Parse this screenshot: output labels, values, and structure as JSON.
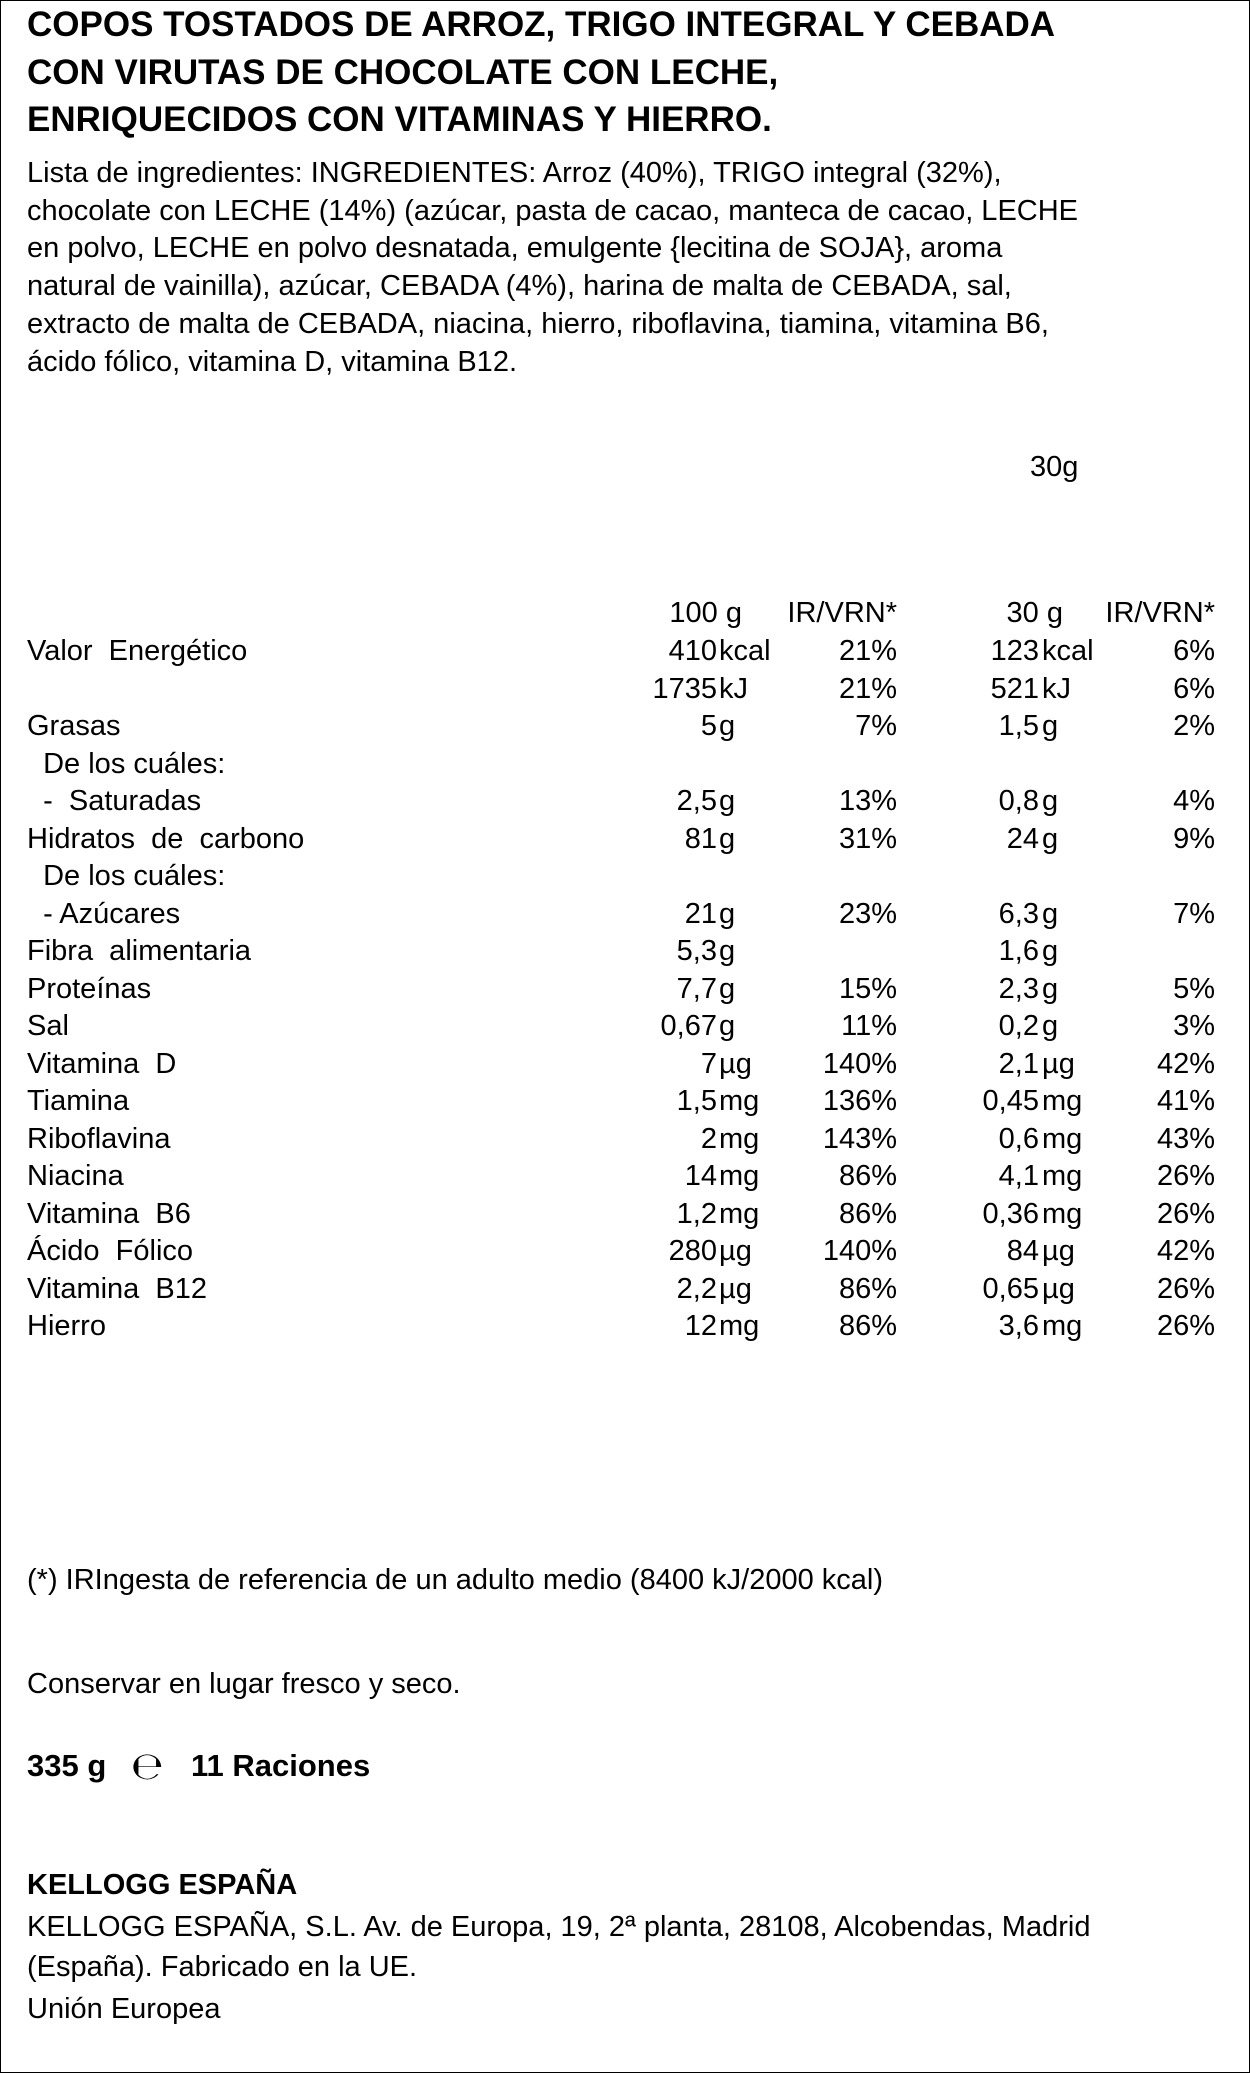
{
  "title": [
    "COPOS TOSTADOS DE ARROZ, TRIGO INTEGRAL Y CEBADA",
    "CON VIRUTAS DE CHOCOLATE CON LECHE,",
    "ENRIQUECIDOS CON VITAMINAS Y HIERRO."
  ],
  "ingredients": [
    "Lista de ingredientes: INGREDIENTES: Arroz (40%), TRIGO integral (32%),",
    "chocolate con LECHE (14%) (azúcar, pasta de cacao, manteca de cacao, LECHE",
    "en polvo, LECHE en polvo desnatada, emulgente {lecitina de SOJA}, aroma",
    "natural de vainilla), azúcar, CEBADA (4%), harina de malta de CEBADA, sal,",
    "extracto de malta de CEBADA, niacina, hierro, riboflavina, tiamina, vitamina B6,",
    "ácido fólico, vitamina D, vitamina B12."
  ],
  "serving": "30g",
  "table": {
    "header": [
      "100 g",
      "IR/VRN*",
      "30 g",
      "IR/VRN*"
    ],
    "rows": [
      {
        "label": "Valor  Energético",
        "v100": [
          "410",
          "kcal"
        ],
        "ir100": "21%",
        "v30": [
          "123",
          "kcal"
        ],
        "ir30": "6%"
      },
      {
        "label": null,
        "v100": [
          "1735",
          "kJ"
        ],
        "ir100": "21%",
        "v30": [
          "521",
          "kJ"
        ],
        "ir30": "6%"
      },
      {
        "label": "Grasas",
        "v100": [
          "5",
          "g"
        ],
        "ir100": "7%",
        "v30": [
          "1,5",
          "g"
        ],
        "ir30": "2%"
      },
      {
        "label": "  De los cuáles:",
        "v100": null,
        "ir100": null,
        "v30": null,
        "ir30": null
      },
      {
        "label": "  -  Saturadas",
        "v100": [
          "2,5",
          "g"
        ],
        "ir100": "13%",
        "v30": [
          "0,8",
          "g"
        ],
        "ir30": "4%"
      },
      {
        "label": "Hidratos  de  carbono",
        "v100": [
          "81",
          "g"
        ],
        "ir100": "31%",
        "v30": [
          "24",
          "g"
        ],
        "ir30": "9%"
      },
      {
        "label": "  De los cuáles:",
        "v100": null,
        "ir100": null,
        "v30": null,
        "ir30": null
      },
      {
        "label": "  - Azúcares",
        "v100": [
          "21",
          "g"
        ],
        "ir100": "23%",
        "v30": [
          "6,3",
          "g"
        ],
        "ir30": "7%"
      },
      {
        "label": "Fibra  alimentaria",
        "v100": [
          "5,3",
          "g"
        ],
        "ir100": null,
        "v30": [
          "1,6",
          "g"
        ],
        "ir30": null
      },
      {
        "label": "Proteínas",
        "v100": [
          "7,7",
          "g"
        ],
        "ir100": "15%",
        "v30": [
          "2,3",
          "g"
        ],
        "ir30": "5%"
      },
      {
        "label": "Sal",
        "v100": [
          "0,67",
          "g"
        ],
        "ir100": "11%",
        "v30": [
          "0,2",
          "g"
        ],
        "ir30": "3%"
      },
      {
        "label": "Vitamina  D",
        "v100": [
          "7",
          "µg"
        ],
        "ir100": "140%",
        "v30": [
          "2,1",
          "µg"
        ],
        "ir30": "42%"
      },
      {
        "label": "Tiamina",
        "v100": [
          "1,5",
          "mg"
        ],
        "ir100": "136%",
        "v30": [
          "0,45",
          "mg"
        ],
        "ir30": "41%"
      },
      {
        "label": "Riboflavina",
        "v100": [
          "2",
          "mg"
        ],
        "ir100": "143%",
        "v30": [
          "0,6",
          "mg"
        ],
        "ir30": "43%"
      },
      {
        "label": "Niacina",
        "v100": [
          "14",
          "mg"
        ],
        "ir100": "86%",
        "v30": [
          "4,1",
          "mg"
        ],
        "ir30": "26%"
      },
      {
        "label": "Vitamina  B6",
        "v100": [
          "1,2",
          "mg"
        ],
        "ir100": "86%",
        "v30": [
          "0,36",
          "mg"
        ],
        "ir30": "26%"
      },
      {
        "label": "Ácido  Fólico",
        "v100": [
          "280",
          "µg"
        ],
        "ir100": "140%",
        "v30": [
          "84",
          "µg"
        ],
        "ir30": "42%"
      },
      {
        "label": "Vitamina  B12",
        "v100": [
          "2,2",
          "µg"
        ],
        "ir100": "86%",
        "v30": [
          "0,65",
          "µg"
        ],
        "ir30": "26%"
      },
      {
        "label": "Hierro",
        "v100": [
          "12",
          "mg"
        ],
        "ir100": "86%",
        "v30": [
          "3,6",
          "mg"
        ],
        "ir30": "26%"
      }
    ]
  },
  "footnote": "(*) IRIngesta de referencia de un adulto medio (8400 kJ/2000 kcal)",
  "storage": "Conservar en lugar fresco y seco.",
  "quantity": {
    "net": "335 g",
    "mark": "℮",
    "servings": "11 Raciones"
  },
  "company": {
    "name": "KELLOGG ESPAÑA",
    "address": [
      "KELLOGG ESPAÑA, S.L. Av. de Europa, 19, 2ª planta, 28108, Alcobendas, Madrid",
      "(España). Fabricado en la UE."
    ],
    "origin": "Unión Europea"
  }
}
